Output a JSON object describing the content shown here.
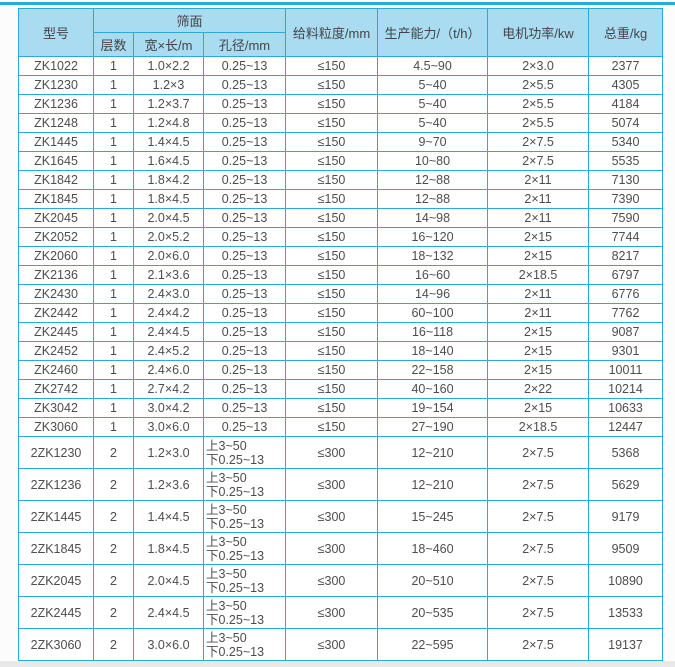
{
  "colors": {
    "accent_blue": "#29a9e0",
    "header_bg": "#aadcf1",
    "text": "#4d4d4f",
    "row_bg": "#ffffff"
  },
  "table": {
    "header": {
      "model": "型号",
      "screen_surface": "筛面",
      "layers": "层数",
      "size": "宽×长/m",
      "aperture": "孔径/mm",
      "feed": "给料粒度/mm",
      "capacity": "生产能力/（t/h）",
      "power": "电机功率/kw",
      "weight": "总重/kg"
    },
    "columns": [
      "model",
      "layers",
      "size",
      "aperture",
      "feed",
      "capacity",
      "power",
      "weight"
    ],
    "rows": [
      [
        "ZK1022",
        "1",
        "1.0×2.2",
        "0.25~13",
        "≤150",
        "4.5~90",
        "2×3.0",
        "2377"
      ],
      [
        "ZK1230",
        "1",
        "1.2×3",
        "0.25~13",
        "≤150",
        "5~40",
        "2×5.5",
        "4305"
      ],
      [
        "ZK1236",
        "1",
        "1.2×3.7",
        "0.25~13",
        "≤150",
        "5~40",
        "2×5.5",
        "4184"
      ],
      [
        "ZK1248",
        "1",
        "1.2×4.8",
        "0.25~13",
        "≤150",
        "5~40",
        "2×5.5",
        "5074"
      ],
      [
        "ZK1445",
        "1",
        "1.4×4.5",
        "0.25~13",
        "≤150",
        "9~70",
        "2×7.5",
        "5340"
      ],
      [
        "ZK1645",
        "1",
        "1.6×4.5",
        "0.25~13",
        "≤150",
        "10~80",
        "2×7.5",
        "5535"
      ],
      [
        "ZK1842",
        "1",
        "1.8×4.2",
        "0.25~13",
        "≤150",
        "12~88",
        "2×11",
        "7130"
      ],
      [
        "ZK1845",
        "1",
        "1.8×4.5",
        "0.25~13",
        "≤150",
        "12~88",
        "2×11",
        "7390"
      ],
      [
        "ZK2045",
        "1",
        "2.0×4.5",
        "0.25~13",
        "≤150",
        "14~98",
        "2×11",
        "7590"
      ],
      [
        "ZK2052",
        "1",
        "2.0×5.2",
        "0.25~13",
        "≤150",
        "16~120",
        "2×15",
        "7744"
      ],
      [
        "ZK2060",
        "1",
        "2.0×6.0",
        "0.25~13",
        "≤150",
        "18~132",
        "2×15",
        "8217"
      ],
      [
        "ZK2136",
        "1",
        "2.1×3.6",
        "0.25~13",
        "≤150",
        "16~60",
        "2×18.5",
        "6797"
      ],
      [
        "ZK2430",
        "1",
        "2.4×3.0",
        "0.25~13",
        "≤150",
        "14~96",
        "2×11",
        "6776"
      ],
      [
        "ZK2442",
        "1",
        "2.4×4.2",
        "0.25~13",
        "≤150",
        "60~100",
        "2×11",
        "7762"
      ],
      [
        "ZK2445",
        "1",
        "2.4×4.5",
        "0.25~13",
        "≤150",
        "16~118",
        "2×15",
        "9087"
      ],
      [
        "ZK2452",
        "1",
        "2.4×5.2",
        "0.25~13",
        "≤150",
        "18~140",
        "2×15",
        "9301"
      ],
      [
        "ZK2460",
        "1",
        "2.4×6.0",
        "0.25~13",
        "≤150",
        "22~158",
        "2×15",
        "10011"
      ],
      [
        "ZK2742",
        "1",
        "2.7×4.2",
        "0.25~13",
        "≤150",
        "40~160",
        "2×22",
        "10214"
      ],
      [
        "ZK3042",
        "1",
        "3.0×4.2",
        "0.25~13",
        "≤150",
        "19~154",
        "2×15",
        "10633"
      ],
      [
        "ZK3060",
        "1",
        "3.0×6.0",
        "0.25~13",
        "≤150",
        "27~190",
        "2×18.5",
        "12447"
      ],
      [
        "2ZK1230",
        "2",
        "1.2×3.0",
        "上3~50\n下0.25~13",
        "≤300",
        "12~210",
        "2×7.5",
        "5368"
      ],
      [
        "2ZK1236",
        "2",
        "1.2×3.6",
        "上3~50\n下0.25~13",
        "≤300",
        "12~210",
        "2×7.5",
        "5629"
      ],
      [
        "2ZK1445",
        "2",
        "1.4×4.5",
        "上3~50\n下0.25~13",
        "≤300",
        "15~245",
        "2×7.5",
        "9179"
      ],
      [
        "2ZK1845",
        "2",
        "1.8×4.5",
        "上3~50\n下0.25~13",
        "≤300",
        "18~460",
        "2×7.5",
        "9509"
      ],
      [
        "2ZK2045",
        "2",
        "2.0×4.5",
        "上3~50\n下0.25~13",
        "≤300",
        "20~510",
        "2×7.5",
        "10890"
      ],
      [
        "2ZK2445",
        "2",
        "2.4×4.5",
        "上3~50\n下0.25~13",
        "≤300",
        "20~535",
        "2×7.5",
        "13533"
      ],
      [
        "2ZK3060",
        "2",
        "3.0×6.0",
        "上3~50\n下0.25~13",
        "≤300",
        "22~595",
        "2×7.5",
        "19137"
      ]
    ]
  }
}
